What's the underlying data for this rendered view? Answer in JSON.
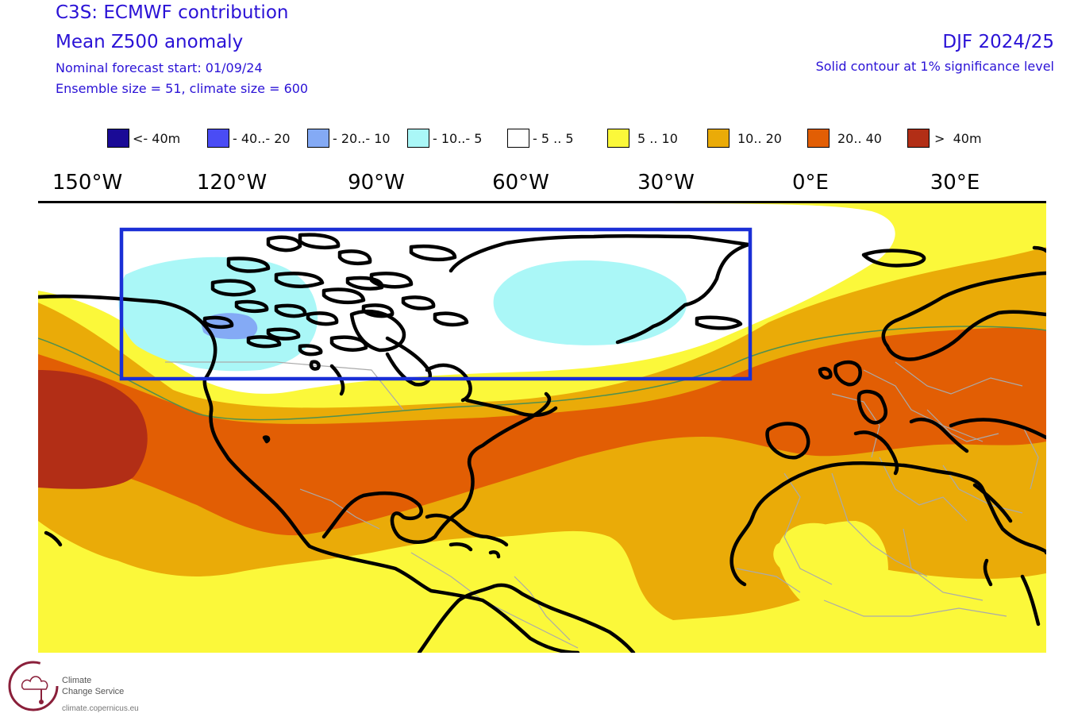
{
  "header": {
    "title1": "C3S: ECMWF contribution",
    "title2": "Mean Z500 anomaly",
    "forecast_start": "Nominal forecast start: 01/09/24",
    "ensemble": "Ensemble size = 51, climate size = 600",
    "season": "DJF 2024/25",
    "significance": "Solid contour at 1% significance level"
  },
  "legend": [
    {
      "label": "<- 40m",
      "color": "#1a0a96"
    },
    {
      "label": "- 40..- 20",
      "color": "#4a4cf5"
    },
    {
      "label": "- 20..- 10",
      "color": "#84aaf5"
    },
    {
      "label": "- 10..- 5",
      "color": "#aaf7f7"
    },
    {
      "label": "- 5 .. 5",
      "color": "#ffffff"
    },
    {
      "label": "5 .. 10",
      "color": "#fbf83a"
    },
    {
      "label": "10.. 20",
      "color": "#eaab08"
    },
    {
      "label": "20.. 40",
      "color": "#e25e04"
    },
    {
      "label": ">  40m",
      "color": "#b22e16"
    }
  ],
  "longitude_labels": [
    "150°W",
    "120°W",
    "90°W",
    "60°W",
    "30°W",
    "0°E",
    "30°E"
  ],
  "map": {
    "region_box_color": "#1a2fd6",
    "coastline_color": "#000000",
    "border_color": "#aaaaaa",
    "significance_contour_color": "#4f9050"
  },
  "logo": {
    "line1": "Climate",
    "line2": "Change Service",
    "url": "climate.copernicus.eu"
  }
}
